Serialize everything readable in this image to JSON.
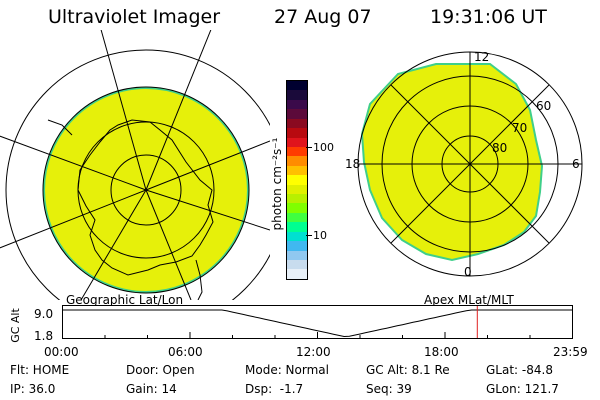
{
  "header": {
    "instrument": "Ultraviolet Imager",
    "date": "27 Aug 07",
    "time": "19:31:06 UT"
  },
  "geographic_panel": {
    "label": "Geographic Lat/Lon"
  },
  "apex_panel": {
    "label": "Apex MLat/MLT",
    "mlt_labels": [
      "12",
      "18",
      "6",
      "0"
    ],
    "lat_labels": [
      "60",
      "70",
      "80"
    ]
  },
  "colorbar": {
    "unit": "photon cm⁻²s⁻¹",
    "tick_labels": [
      "100",
      "10"
    ],
    "colors": [
      "#000030",
      "#1a0a3a",
      "#3a0a4a",
      "#5c0a3a",
      "#8a0a20",
      "#b80a10",
      "#e0141c",
      "#ff3c00",
      "#ff8c00",
      "#ffc000",
      "#ffff00",
      "#e0f000",
      "#b8f000",
      "#80ff00",
      "#40ff40",
      "#00ff90",
      "#00e0d0",
      "#40b8f0",
      "#90c8f0",
      "#c8dcee",
      "#e8f0f8"
    ]
  },
  "altitude_plot": {
    "ylabel": "GC Alt",
    "ytick_labels": [
      "9.0",
      "1.8"
    ],
    "xtick_labels": [
      "00:00",
      "06:00",
      "12:00",
      "18:00",
      "23:59"
    ],
    "current_marker_hour": 19.52
  },
  "status": {
    "flt": "Flt: HOME",
    "ip": "IP: 36.0",
    "door": "Door: Open",
    "gain": "Gain: 14",
    "mode": "Mode: Normal",
    "dsp": "Dsp:  -1.7",
    "gc_alt": "GC Alt: 8.1 Re",
    "seq": "Seq: 39",
    "glat": "GLat: -84.8",
    "glon": "GLon: 121.7"
  },
  "colors": {
    "emission": "#e6f00a",
    "edge": "#3fcf8a",
    "marker": "#e02020"
  }
}
